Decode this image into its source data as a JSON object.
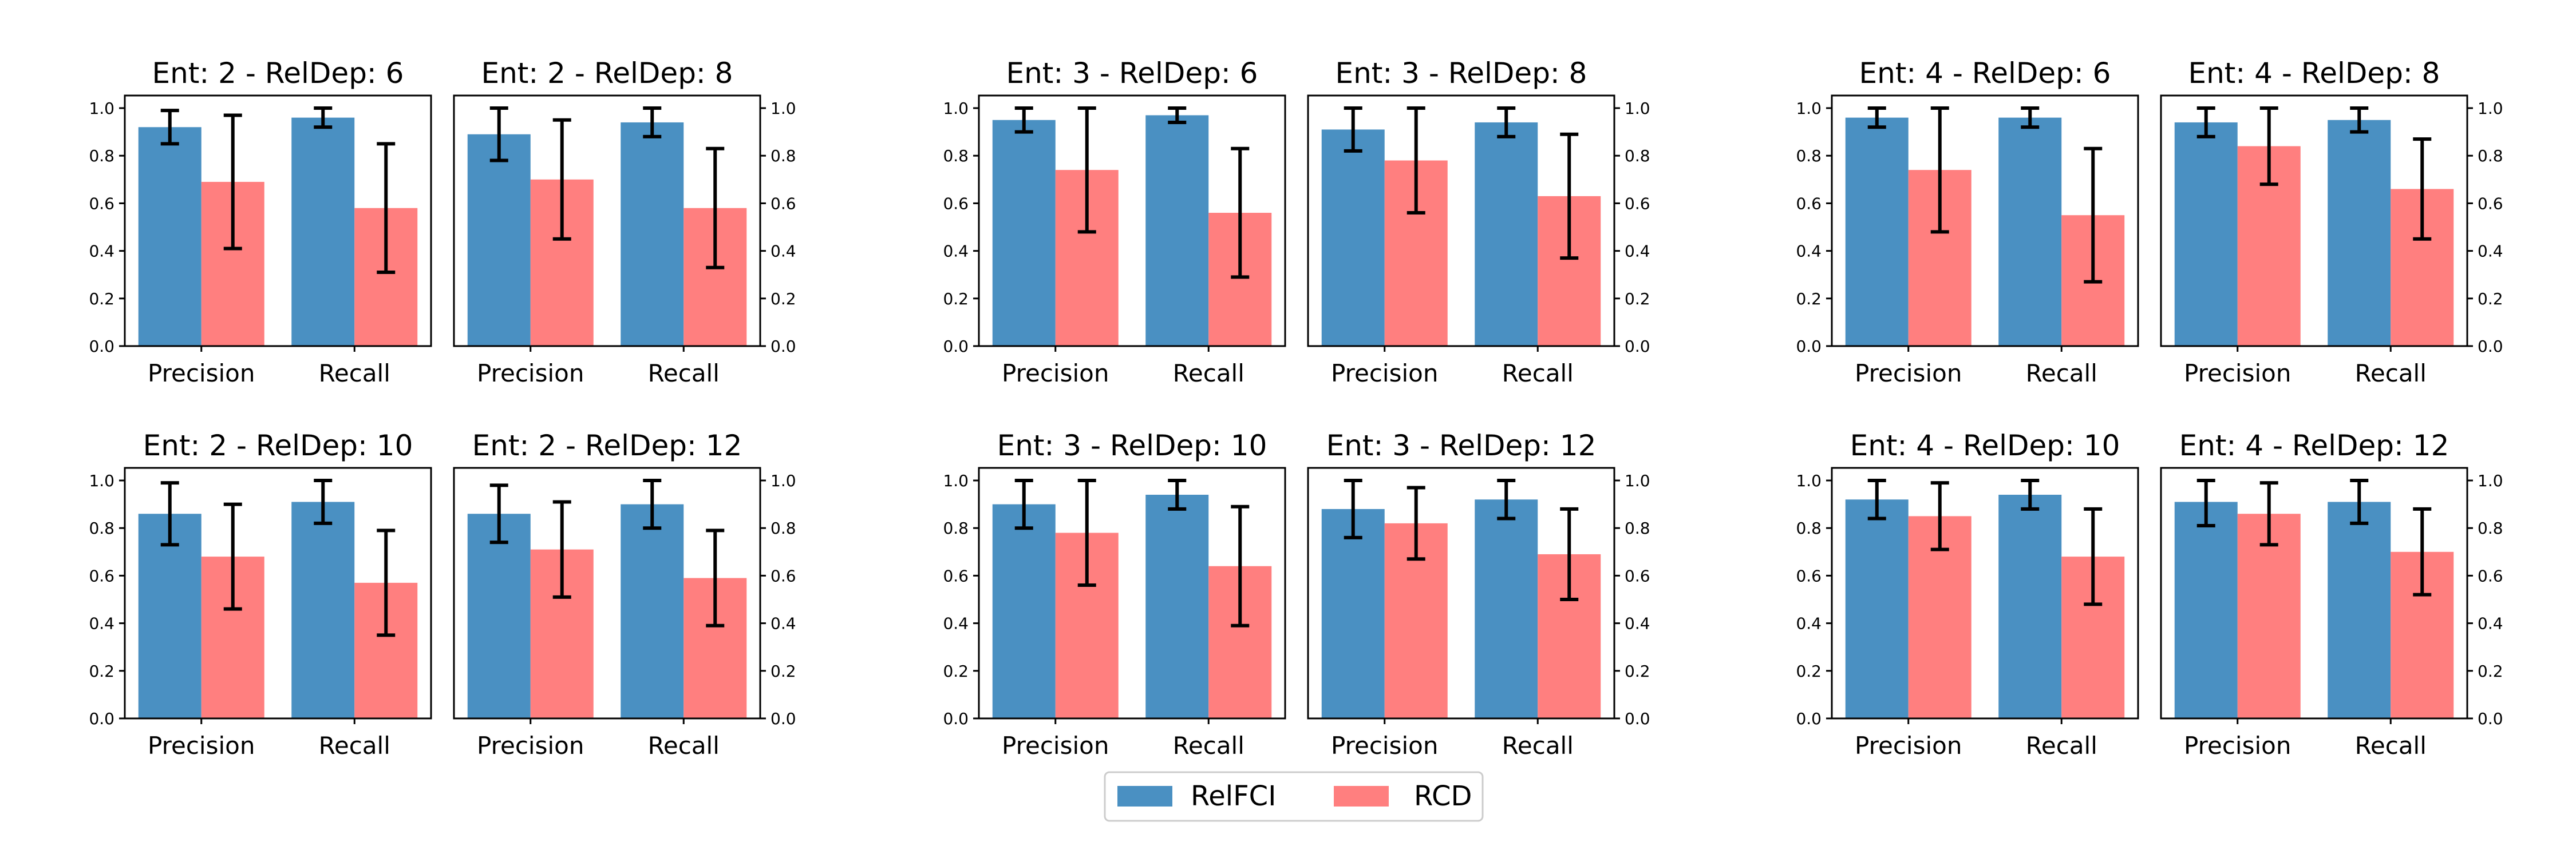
{
  "colors": {
    "relfci": "#4a90c2",
    "rcd": "#ff7f7f",
    "error": "#000000"
  },
  "chart_data": {
    "type": "bar",
    "categories": [
      "Precision",
      "Recall"
    ],
    "ylim": [
      0,
      1.0
    ],
    "yticks": [
      "0.0",
      "0.2",
      "0.4",
      "0.6",
      "0.8",
      "1.0"
    ],
    "legend": {
      "placement": "bottom-center",
      "entries": [
        "RelFCI",
        "RCD"
      ]
    },
    "panels": [
      {
        "title": "Ent: 2 - RelDep: 6",
        "series": [
          {
            "name": "RelFCI",
            "values": [
              0.92,
              0.96
            ],
            "err": [
              0.07,
              0.04
            ]
          },
          {
            "name": "RCD",
            "values": [
              0.69,
              0.58
            ],
            "err": [
              0.28,
              0.27
            ]
          }
        ]
      },
      {
        "title": "Ent: 2 - RelDep: 8",
        "series": [
          {
            "name": "RelFCI",
            "values": [
              0.89,
              0.94
            ],
            "err": [
              0.11,
              0.06
            ]
          },
          {
            "name": "RCD",
            "values": [
              0.7,
              0.58
            ],
            "err": [
              0.25,
              0.25
            ]
          }
        ]
      },
      {
        "title": "Ent: 3 - RelDep: 6",
        "series": [
          {
            "name": "RelFCI",
            "values": [
              0.95,
              0.97
            ],
            "err": [
              0.05,
              0.03
            ]
          },
          {
            "name": "RCD",
            "values": [
              0.74,
              0.56
            ],
            "err": [
              0.26,
              0.27
            ]
          }
        ]
      },
      {
        "title": "Ent: 3 - RelDep: 8",
        "series": [
          {
            "name": "RelFCI",
            "values": [
              0.91,
              0.94
            ],
            "err": [
              0.09,
              0.06
            ]
          },
          {
            "name": "RCD",
            "values": [
              0.78,
              0.63
            ],
            "err": [
              0.22,
              0.26
            ]
          }
        ]
      },
      {
        "title": "Ent: 4 - RelDep: 6",
        "series": [
          {
            "name": "RelFCI",
            "values": [
              0.96,
              0.96
            ],
            "err": [
              0.04,
              0.04
            ]
          },
          {
            "name": "RCD",
            "values": [
              0.74,
              0.55
            ],
            "err": [
              0.26,
              0.28
            ]
          }
        ]
      },
      {
        "title": "Ent: 4 - RelDep: 8",
        "series": [
          {
            "name": "RelFCI",
            "values": [
              0.94,
              0.95
            ],
            "err": [
              0.06,
              0.05
            ]
          },
          {
            "name": "RCD",
            "values": [
              0.84,
              0.66
            ],
            "err": [
              0.16,
              0.21
            ]
          }
        ]
      },
      {
        "title": "Ent: 2 - RelDep: 10",
        "series": [
          {
            "name": "RelFCI",
            "values": [
              0.86,
              0.91
            ],
            "err": [
              0.13,
              0.09
            ]
          },
          {
            "name": "RCD",
            "values": [
              0.68,
              0.57
            ],
            "err": [
              0.22,
              0.22
            ]
          }
        ]
      },
      {
        "title": "Ent: 2 - RelDep: 12",
        "series": [
          {
            "name": "RelFCI",
            "values": [
              0.86,
              0.9
            ],
            "err": [
              0.12,
              0.1
            ]
          },
          {
            "name": "RCD",
            "values": [
              0.71,
              0.59
            ],
            "err": [
              0.2,
              0.2
            ]
          }
        ]
      },
      {
        "title": "Ent: 3 - RelDep: 10",
        "series": [
          {
            "name": "RelFCI",
            "values": [
              0.9,
              0.94
            ],
            "err": [
              0.1,
              0.06
            ]
          },
          {
            "name": "RCD",
            "values": [
              0.78,
              0.64
            ],
            "err": [
              0.22,
              0.25
            ]
          }
        ]
      },
      {
        "title": "Ent: 3 - RelDep: 12",
        "series": [
          {
            "name": "RelFCI",
            "values": [
              0.88,
              0.92
            ],
            "err": [
              0.12,
              0.08
            ]
          },
          {
            "name": "RCD",
            "values": [
              0.82,
              0.69
            ],
            "err": [
              0.15,
              0.19
            ]
          }
        ]
      },
      {
        "title": "Ent: 4 - RelDep: 10",
        "series": [
          {
            "name": "RelFCI",
            "values": [
              0.92,
              0.94
            ],
            "err": [
              0.08,
              0.06
            ]
          },
          {
            "name": "RCD",
            "values": [
              0.85,
              0.68
            ],
            "err": [
              0.14,
              0.2
            ]
          }
        ]
      },
      {
        "title": "Ent: 4 - RelDep: 12",
        "series": [
          {
            "name": "RelFCI",
            "values": [
              0.91,
              0.91
            ],
            "err": [
              0.1,
              0.09
            ]
          },
          {
            "name": "RCD",
            "values": [
              0.86,
              0.7
            ],
            "err": [
              0.13,
              0.18
            ]
          }
        ]
      }
    ]
  }
}
